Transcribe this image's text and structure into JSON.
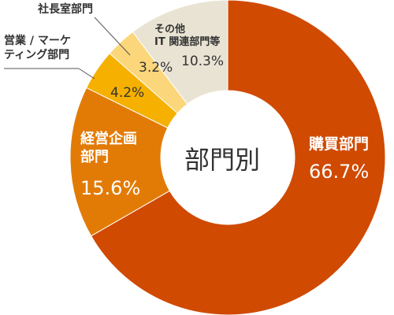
{
  "chart_data": {
    "type": "donut",
    "title": "部門別",
    "categories": [
      "購買部門",
      "経営企画\n部門",
      "営業 / マーケ\nティング部門",
      "社長室部門",
      "その他\nIT 関連部門等"
    ],
    "values": [
      66.7,
      15.6,
      4.2,
      3.2,
      10.3
    ],
    "value_labels": [
      "66.7%",
      "15.6%",
      "4.2%",
      "3.2%",
      "10.3%"
    ],
    "colors": [
      "#d04a02",
      "#e27b06",
      "#f5b000",
      "#fbd67a",
      "#e9e3d3"
    ]
  }
}
